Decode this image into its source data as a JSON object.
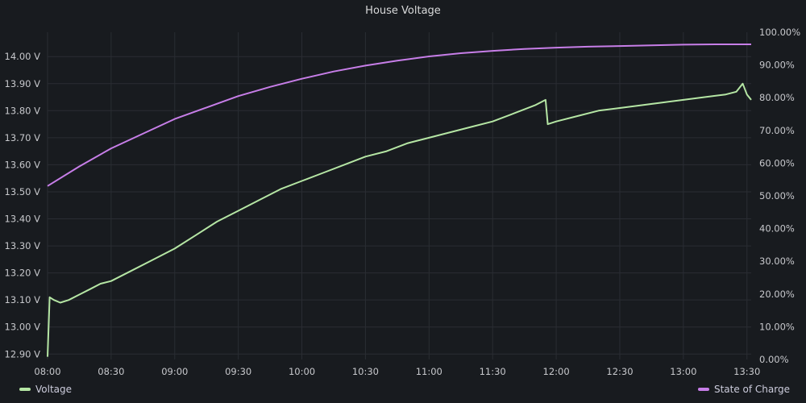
{
  "panel": {
    "title": "House Voltage"
  },
  "chart_data": {
    "type": "line",
    "title": "House Voltage",
    "x_ticks": [
      "08:00",
      "08:30",
      "09:00",
      "09:30",
      "10:00",
      "10:30",
      "11:00",
      "11:30",
      "12:00",
      "12:30",
      "13:00",
      "13:30"
    ],
    "xlim": [
      "08:00",
      "13:32"
    ],
    "left_axis": {
      "unit": "V",
      "ylim": [
        12.88,
        14.09
      ],
      "ticks": [
        "12.90 V",
        "13.00 V",
        "13.10 V",
        "13.20 V",
        "13.30 V",
        "13.40 V",
        "13.50 V",
        "13.60 V",
        "13.70 V",
        "13.80 V",
        "13.90 V",
        "14.00 V"
      ]
    },
    "right_axis": {
      "unit": "%",
      "ylim": [
        0,
        100
      ],
      "ticks": [
        "0.00%",
        "10.00%",
        "20.00%",
        "30.00%",
        "40.00%",
        "50.00%",
        "60.00%",
        "70.00%",
        "80.00%",
        "90.00%",
        "100.00%"
      ]
    },
    "grid": true,
    "legend_placement": "bottom",
    "series": [
      {
        "name": "Voltage",
        "axis": "left",
        "color": "#b5e6a4",
        "points": [
          [
            "08:00",
            12.89
          ],
          [
            "08:01",
            13.11
          ],
          [
            "08:03",
            13.1
          ],
          [
            "08:06",
            13.09
          ],
          [
            "08:10",
            13.1
          ],
          [
            "08:15",
            13.12
          ],
          [
            "08:20",
            13.14
          ],
          [
            "08:25",
            13.16
          ],
          [
            "08:30",
            13.17
          ],
          [
            "08:40",
            13.21
          ],
          [
            "08:50",
            13.25
          ],
          [
            "09:00",
            13.29
          ],
          [
            "09:10",
            13.34
          ],
          [
            "09:20",
            13.39
          ],
          [
            "09:30",
            13.43
          ],
          [
            "09:40",
            13.47
          ],
          [
            "09:50",
            13.51
          ],
          [
            "10:00",
            13.54
          ],
          [
            "10:10",
            13.57
          ],
          [
            "10:20",
            13.6
          ],
          [
            "10:30",
            13.63
          ],
          [
            "10:40",
            13.65
          ],
          [
            "10:50",
            13.68
          ],
          [
            "11:00",
            13.7
          ],
          [
            "11:10",
            13.72
          ],
          [
            "11:20",
            13.74
          ],
          [
            "11:30",
            13.76
          ],
          [
            "11:40",
            13.79
          ],
          [
            "11:50",
            13.82
          ],
          [
            "11:55",
            13.84
          ],
          [
            "11:56",
            13.75
          ],
          [
            "12:00",
            13.76
          ],
          [
            "12:10",
            13.78
          ],
          [
            "12:20",
            13.8
          ],
          [
            "12:30",
            13.81
          ],
          [
            "12:40",
            13.82
          ],
          [
            "12:50",
            13.83
          ],
          [
            "13:00",
            13.84
          ],
          [
            "13:10",
            13.85
          ],
          [
            "13:20",
            13.86
          ],
          [
            "13:25",
            13.87
          ],
          [
            "13:28",
            13.9
          ],
          [
            "13:30",
            13.86
          ],
          [
            "13:32",
            13.84
          ]
        ]
      },
      {
        "name": "State of Charge",
        "axis": "right",
        "color": "#c77ee8",
        "points": [
          [
            "08:00",
            53
          ],
          [
            "08:15",
            59
          ],
          [
            "08:30",
            64.5
          ],
          [
            "08:45",
            69
          ],
          [
            "09:00",
            73.5
          ],
          [
            "09:15",
            77
          ],
          [
            "09:30",
            80.5
          ],
          [
            "09:45",
            83.3
          ],
          [
            "10:00",
            85.8
          ],
          [
            "10:15",
            88
          ],
          [
            "10:30",
            89.8
          ],
          [
            "10:45",
            91.3
          ],
          [
            "11:00",
            92.6
          ],
          [
            "11:15",
            93.6
          ],
          [
            "11:30",
            94.3
          ],
          [
            "11:45",
            94.9
          ],
          [
            "12:00",
            95.3
          ],
          [
            "12:15",
            95.6
          ],
          [
            "12:30",
            95.8
          ],
          [
            "12:45",
            96
          ],
          [
            "13:00",
            96.2
          ],
          [
            "13:15",
            96.3
          ],
          [
            "13:32",
            96.3
          ]
        ]
      }
    ]
  },
  "legend": {
    "left": {
      "label": "Voltage",
      "color": "#b5e6a4"
    },
    "right": {
      "label": "State of Charge",
      "color": "#c77ee8"
    }
  }
}
